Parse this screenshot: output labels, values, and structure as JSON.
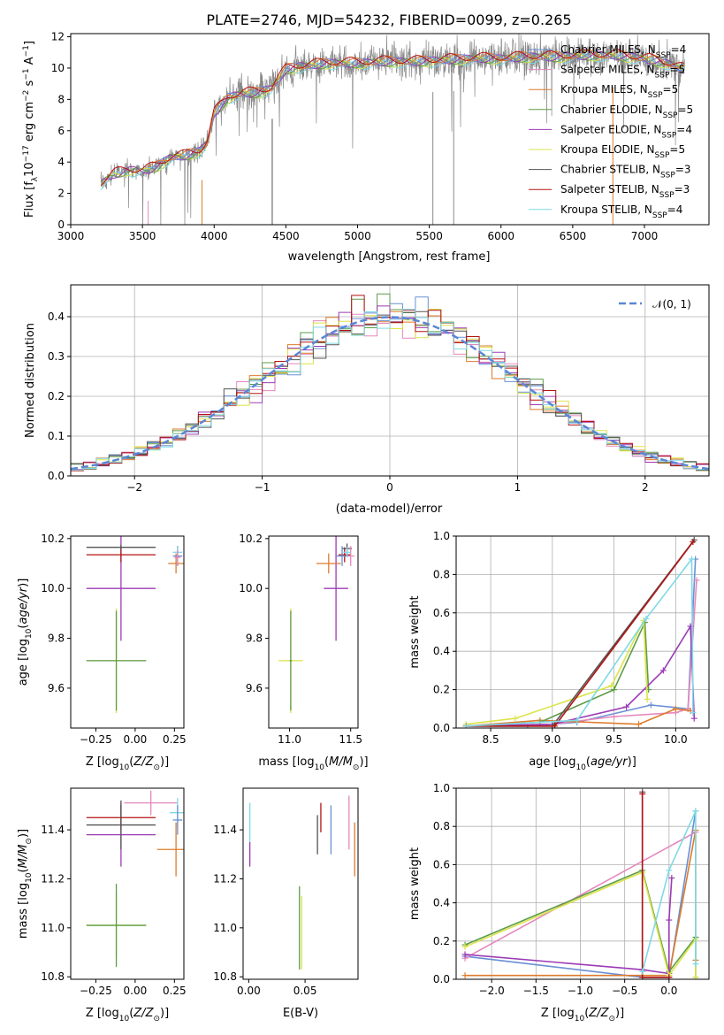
{
  "colors": {
    "Chabrier MILES": "#6a8fd4",
    "Salpeter MILES": "#e587bd",
    "Kroupa MILES": "#dd7b2c",
    "Chabrier ELODIE": "#5e9c49",
    "Salpeter ELODIE": "#9b3bb5",
    "Kroupa ELODIE": "#dce34a",
    "Chabrier STELIB": "#555555",
    "Salpeter STELIB": "#b31313",
    "Kroupa STELIB": "#7fd9e6",
    "normal": "#5b86d6",
    "data": "#888888",
    "grid": "#b0b0b0"
  },
  "chart_data": [
    {
      "type": "line",
      "title": "PLATE=2746, MJD=54232, FIBERID=0099, z=0.265",
      "xlabel": "wavelength [Angstrom, rest frame]",
      "ylabel": "Flux [f_λ10^{-17} erg cm^{-2} s^{-1} A^{-1}]",
      "xlim": [
        3000,
        7450
      ],
      "ylim": [
        0,
        12.2
      ],
      "xticks": [
        3000,
        3500,
        4000,
        4500,
        5000,
        5500,
        6000,
        6500,
        7000
      ],
      "yticks": [
        0,
        2,
        4,
        6,
        8,
        10,
        12
      ],
      "continuum": {
        "wavelength": [
          3210,
          3300,
          3400,
          3500,
          3600,
          3700,
          3800,
          3900,
          3950,
          4000,
          4100,
          4200,
          4300,
          4400,
          4500,
          4600,
          4700,
          4800,
          5000,
          5200,
          5400,
          5600,
          5800,
          6000,
          6200,
          6400,
          6600,
          6800,
          7000,
          7200,
          7280
        ],
        "flux": [
          2.6,
          3.2,
          3.5,
          3.4,
          3.7,
          4.3,
          4.4,
          4.7,
          5.2,
          7.1,
          8.1,
          8.4,
          8.4,
          8.7,
          9.9,
          10.1,
          10.2,
          10.3,
          10.3,
          10.4,
          10.4,
          10.5,
          10.6,
          10.6,
          10.7,
          10.7,
          10.8,
          10.8,
          10.6,
          10.2,
          9.9
        ]
      },
      "legend": [
        "Chabrier MILES, N_SSP=4",
        "Salpeter MILES, N_SSP=5",
        "Kroupa MILES, N_SSP=5",
        "Chabrier ELODIE, N_SSP=5",
        "Salpeter ELODIE, N_SSP=4",
        "Kroupa ELODIE, N_SSP=5",
        "Chabrier STELIB, N_SSP=3",
        "Salpeter STELIB, N_SSP=3",
        "Kroupa STELIB, N_SSP=4"
      ],
      "legend_position": "upper right"
    },
    {
      "type": "line",
      "xlabel": "(data-model)/error",
      "ylabel": "Normed distribution",
      "xlim": [
        -2.5,
        2.5
      ],
      "ylim": [
        0,
        0.48
      ],
      "xticks": [
        -2,
        -1,
        0,
        1,
        2
      ],
      "yticks": [
        0.0,
        0.1,
        0.2,
        0.3,
        0.4
      ],
      "legend_label": "𝒩(0, 1)",
      "bin_width": 0.1,
      "bin_start": -2.5,
      "legend_position": "upper right"
    },
    {
      "type": "scatter",
      "xlabel": "Z [log10(Z/Z☉)]",
      "ylabel": "age  [log10(age/yr)]",
      "xlim": [
        -0.41,
        0.31
      ],
      "ylim": [
        9.44,
        10.21
      ],
      "xticks": [
        -0.25,
        0.0,
        0.25
      ],
      "yticks": [
        9.6,
        9.8,
        10.0,
        10.2
      ],
      "points": [
        {
          "x": -0.12,
          "y": 9.71,
          "xerr": 0.19,
          "yerr": 0.21,
          "color": "Kroupa ELODIE"
        },
        {
          "x": -0.12,
          "y": 9.71,
          "xerr": 0.19,
          "yerr": 0.2,
          "color": "Chabrier ELODIE"
        },
        {
          "x": -0.09,
          "y": 10.0,
          "xerr": 0.22,
          "yerr": 0.21,
          "color": "Salpeter ELODIE"
        },
        {
          "x": -0.09,
          "y": 10.135,
          "xerr": 0.22,
          "yerr": 0.03,
          "color": "Salpeter STELIB"
        },
        {
          "x": -0.09,
          "y": 10.165,
          "xerr": 0.22,
          "yerr": 0.01,
          "color": "Chabrier STELIB"
        },
        {
          "x": 0.26,
          "y": 10.1,
          "xerr": 0.05,
          "yerr": 0.04,
          "color": "Kroupa MILES"
        },
        {
          "x": 0.27,
          "y": 10.13,
          "xerr": 0.03,
          "yerr": 0.04,
          "color": "Chabrier MILES"
        },
        {
          "x": 0.27,
          "y": 10.145,
          "xerr": 0.03,
          "yerr": 0.02,
          "color": "Kroupa STELIB"
        },
        {
          "x": 0.27,
          "y": 10.125,
          "xerr": 0.02,
          "yerr": 0.03,
          "color": "Salpeter MILES"
        }
      ]
    },
    {
      "type": "scatter",
      "xlabel": "mass [log10(M/M☉)]",
      "ylabel": "",
      "xlim": [
        10.83,
        11.56
      ],
      "ylim": [
        9.44,
        10.21
      ],
      "xticks": [
        11.0,
        11.5
      ],
      "yticks": [
        9.6,
        9.8,
        10.0,
        10.2
      ],
      "points": [
        {
          "x": 11.01,
          "y": 9.71,
          "xerr": 0.1,
          "yerr": 0.21,
          "color": "Kroupa ELODIE"
        },
        {
          "x": 11.01,
          "y": 9.71,
          "xerr": 0.01,
          "yerr": 0.2,
          "color": "Chabrier ELODIE"
        },
        {
          "x": 11.38,
          "y": 10.0,
          "xerr": 0.1,
          "yerr": 0.21,
          "color": "Salpeter ELODIE"
        },
        {
          "x": 11.45,
          "y": 10.135,
          "xerr": 0.05,
          "yerr": 0.03,
          "color": "Salpeter STELIB"
        },
        {
          "x": 11.47,
          "y": 10.16,
          "xerr": 0.04,
          "yerr": 0.02,
          "color": "Chabrier STELIB"
        },
        {
          "x": 11.32,
          "y": 10.1,
          "xerr": 0.1,
          "yerr": 0.04,
          "color": "Kroupa MILES"
        },
        {
          "x": 11.43,
          "y": 10.13,
          "xerr": 0.05,
          "yerr": 0.04,
          "color": "Chabrier MILES"
        },
        {
          "x": 11.5,
          "y": 10.13,
          "xerr": 0.03,
          "yerr": 0.04,
          "color": "Salpeter MILES"
        },
        {
          "x": 11.47,
          "y": 10.145,
          "xerr": 0.03,
          "yerr": 0.02,
          "color": "Kroupa STELIB"
        }
      ]
    },
    {
      "type": "line",
      "xlabel": "age  [log10(age/yr)]",
      "ylabel": "mass weight",
      "xlim": [
        8.22,
        10.27
      ],
      "ylim": [
        0,
        1.0
      ],
      "xticks": [
        8.5,
        9.0,
        9.5,
        10.0
      ],
      "yticks": [
        0.0,
        0.2,
        0.4,
        0.6,
        0.8,
        1.0
      ],
      "series": [
        {
          "color": "Chabrier MILES",
          "x": [
            8.3,
            8.8,
            9.2,
            9.8,
            10.1,
            10.16
          ],
          "y": [
            0.01,
            0.01,
            0.03,
            0.12,
            0.1,
            0.88
          ]
        },
        {
          "color": "Salpeter MILES",
          "x": [
            8.3,
            9.0,
            9.5,
            10.0,
            10.1,
            10.17
          ],
          "y": [
            0.01,
            0.02,
            0.06,
            0.08,
            0.1,
            0.77
          ]
        },
        {
          "color": "Kroupa MILES",
          "x": [
            8.3,
            8.9,
            9.7,
            10.0,
            10.12
          ],
          "y": [
            0.01,
            0.04,
            0.02,
            0.1,
            0.09
          ]
        },
        {
          "color": "Chabrier ELODIE",
          "x": [
            8.3,
            8.9,
            9.5,
            9.75,
            9.78
          ],
          "y": [
            0.01,
            0.03,
            0.2,
            0.55,
            0.2
          ]
        },
        {
          "color": "Salpeter ELODIE",
          "x": [
            8.3,
            9.0,
            9.6,
            9.9,
            10.12,
            10.15
          ],
          "y": [
            0.01,
            0.02,
            0.11,
            0.3,
            0.53,
            0.05
          ]
        },
        {
          "color": "Kroupa ELODIE",
          "x": [
            8.3,
            8.7,
            9.48,
            9.74,
            9.77
          ],
          "y": [
            0.02,
            0.05,
            0.22,
            0.56,
            0.15
          ]
        },
        {
          "color": "Chabrier STELIB",
          "x": [
            8.3,
            9.0,
            10.15
          ],
          "y": [
            0.01,
            0.01,
            0.98
          ]
        },
        {
          "color": "Salpeter STELIB",
          "x": [
            8.3,
            9.02,
            10.14
          ],
          "y": [
            0.01,
            0.01,
            0.97
          ]
        },
        {
          "color": "Kroupa STELIB",
          "x": [
            8.3,
            9.2,
            9.76,
            10.13,
            10.14
          ],
          "y": [
            0.01,
            0.04,
            0.57,
            0.88,
            0.08
          ]
        }
      ]
    },
    {
      "type": "scatter",
      "xlabel": "Z [log10(Z/Z☉)]",
      "ylabel": "mass [log10(M/M☉)]",
      "xlim": [
        -0.41,
        0.31
      ],
      "ylim": [
        10.79,
        11.57
      ],
      "xticks": [
        -0.25,
        0.0,
        0.25
      ],
      "yticks": [
        10.8,
        11.0,
        11.2,
        11.4
      ],
      "points": [
        {
          "x": -0.12,
          "y": 11.01,
          "xerr": 0.19,
          "yerr": 0.13,
          "color": "Kroupa ELODIE"
        },
        {
          "x": -0.12,
          "y": 11.01,
          "xerr": 0.19,
          "yerr": 0.17,
          "color": "Chabrier ELODIE"
        },
        {
          "x": -0.09,
          "y": 11.38,
          "xerr": 0.22,
          "yerr": 0.13,
          "color": "Salpeter ELODIE"
        },
        {
          "x": -0.09,
          "y": 11.45,
          "xerr": 0.22,
          "yerr": 0.05,
          "color": "Salpeter STELIB"
        },
        {
          "x": -0.09,
          "y": 11.42,
          "xerr": 0.22,
          "yerr": 0.1,
          "color": "Chabrier STELIB"
        },
        {
          "x": 0.1,
          "y": 11.51,
          "xerr": 0.17,
          "yerr": 0.05,
          "color": "Salpeter MILES"
        },
        {
          "x": 0.26,
          "y": 11.32,
          "xerr": 0.12,
          "yerr": 0.11,
          "color": "Kroupa MILES"
        },
        {
          "x": 0.27,
          "y": 11.47,
          "xerr": 0.05,
          "yerr": 0.06,
          "color": "Kroupa STELIB"
        },
        {
          "x": 0.27,
          "y": 11.44,
          "xerr": 0.03,
          "yerr": 0.06,
          "color": "Chabrier MILES"
        }
      ]
    },
    {
      "type": "scatter",
      "xlabel": "E(B-V)",
      "ylabel": "",
      "xlim": [
        -0.005,
        0.097
      ],
      "ylim": [
        10.79,
        11.57
      ],
      "xticks": [
        0.0,
        0.05
      ],
      "xtick_labels": [
        "0.00",
        "0.05"
      ],
      "yticks": [
        10.8,
        11.0,
        11.2,
        11.4
      ],
      "points": [
        {
          "x": 0.001,
          "y": 11.3,
          "yerr": 0.05,
          "color": "Salpeter ELODIE"
        },
        {
          "x": 0.001,
          "y": 11.43,
          "yerr": 0.08,
          "color": "Kroupa STELIB"
        },
        {
          "x": 0.045,
          "y": 11.0,
          "yerr": 0.17,
          "color": "Chabrier ELODIE"
        },
        {
          "x": 0.047,
          "y": 10.98,
          "yerr": 0.15,
          "color": "Kroupa ELODIE"
        },
        {
          "x": 0.061,
          "y": 11.38,
          "yerr": 0.08,
          "color": "Chabrier STELIB"
        },
        {
          "x": 0.064,
          "y": 11.45,
          "yerr": 0.06,
          "color": "Salpeter STELIB"
        },
        {
          "x": 0.073,
          "y": 11.4,
          "yerr": 0.1,
          "color": "Chabrier MILES"
        },
        {
          "x": 0.089,
          "y": 11.43,
          "yerr": 0.11,
          "color": "Salpeter MILES"
        },
        {
          "x": 0.094,
          "y": 11.32,
          "yerr": 0.11,
          "color": "Kroupa MILES"
        }
      ]
    },
    {
      "type": "line",
      "xlabel": "Z [log10(Z/Z☉)]",
      "ylabel": "mass weight",
      "xlim": [
        -2.4,
        0.45
      ],
      "ylim": [
        0,
        1.0
      ],
      "xticks": [
        -2.0,
        -1.5,
        -1.0,
        -0.5,
        0.0
      ],
      "yticks": [
        0.0,
        0.2,
        0.4,
        0.6,
        0.8,
        1.0
      ],
      "series": [
        {
          "color": "Chabrier MILES",
          "x": [
            -2.3,
            -0.3,
            0.0,
            0.3
          ],
          "y": [
            0.12,
            0.01,
            0.01,
            0.88
          ]
        },
        {
          "color": "Salpeter MILES",
          "x": [
            -2.3,
            0.3
          ],
          "y": [
            0.11,
            0.77
          ]
        },
        {
          "color": "Kroupa MILES",
          "x": [
            -2.3,
            -0.3,
            0.0,
            0.3,
            0.3
          ],
          "y": [
            0.02,
            0.02,
            0.02,
            0.78,
            0.1
          ]
        },
        {
          "color": "Chabrier ELODIE",
          "x": [
            -2.3,
            -0.3,
            0.0,
            0.3,
            0.3
          ],
          "y": [
            0.18,
            0.57,
            0.04,
            0.22,
            0.01
          ]
        },
        {
          "color": "Salpeter ELODIE",
          "x": [
            -2.3,
            -0.3,
            0.0,
            0.0,
            0.03
          ],
          "y": [
            0.13,
            0.05,
            0.03,
            0.31,
            0.53
          ]
        },
        {
          "color": "Kroupa ELODIE",
          "x": [
            -2.3,
            -0.3,
            0.0,
            0.3,
            0.3
          ],
          "y": [
            0.17,
            0.56,
            0.02,
            0.21,
            0.01
          ]
        },
        {
          "color": "Chabrier STELIB",
          "x": [
            -0.3,
            -0.3,
            0.0
          ],
          "y": [
            0.98,
            0.01,
            0.01
          ]
        },
        {
          "color": "Salpeter STELIB",
          "x": [
            -0.3,
            -0.3,
            0.0
          ],
          "y": [
            0.97,
            0.01,
            0.01
          ]
        },
        {
          "color": "Kroupa STELIB",
          "x": [
            -0.3,
            0.0,
            0.3,
            0.3
          ],
          "y": [
            0.04,
            0.57,
            0.88,
            0.08
          ]
        }
      ]
    }
  ]
}
